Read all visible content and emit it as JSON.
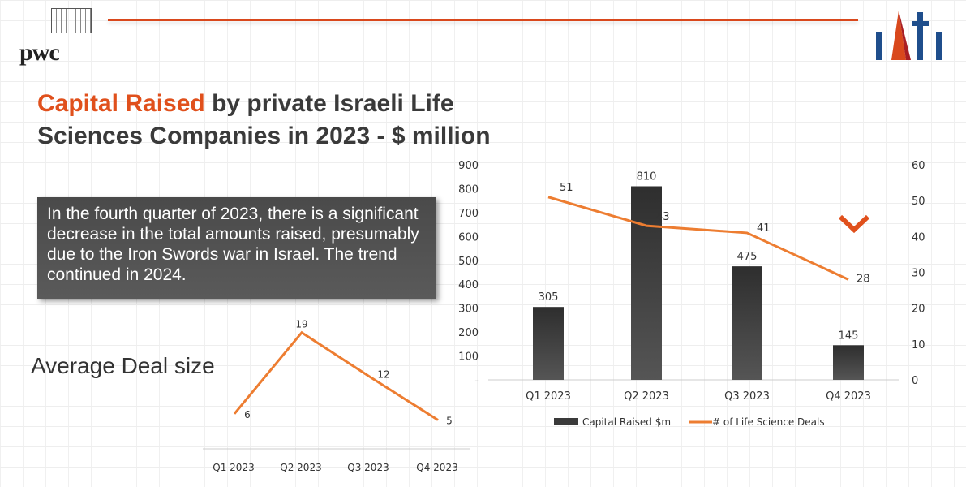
{
  "header": {
    "left_logo": "pwc",
    "right_logo": "iATi"
  },
  "title": {
    "highlight": "Capital Raised",
    "rest": " by private Israeli Life Sciences Companies in 2023 - $ million"
  },
  "note": "In the fourth quarter of 2023, there is a significant decrease in the total amounts raised, presumably due to the Iron Swords war in Israel. The trend continued in 2024.",
  "colors": {
    "accent": "#e0501c",
    "bar": "#3a3a3a",
    "line": "#ed7d31"
  },
  "chart_data": [
    {
      "type": "bar+line",
      "categories": [
        "Q1 2023",
        "Q2 2023",
        "Q3 2023",
        "Q4 2023"
      ],
      "series": [
        {
          "name": "Capital Raised $m",
          "type": "bar",
          "axis": "left",
          "values": [
            305,
            810,
            475,
            145
          ]
        },
        {
          "name": "# of Life Science Deals",
          "type": "line",
          "axis": "right",
          "values": [
            51,
            43,
            41,
            28
          ]
        }
      ],
      "left_axis": {
        "ylim": [
          0,
          900
        ],
        "ticks": [
          "-",
          "100",
          "200",
          "300",
          "400",
          "500",
          "600",
          "700",
          "800",
          "900"
        ]
      },
      "right_axis": {
        "ylim": [
          0,
          60
        ],
        "ticks": [
          "0",
          "10",
          "20",
          "30",
          "40",
          "50",
          "60"
        ]
      },
      "legend": "bottom"
    },
    {
      "type": "line",
      "title": "Average Deal size",
      "categories": [
        "Q1 2023",
        "Q2 2023",
        "Q3 2023",
        "Q4 2023"
      ],
      "values": [
        6,
        19,
        12,
        5
      ]
    }
  ]
}
